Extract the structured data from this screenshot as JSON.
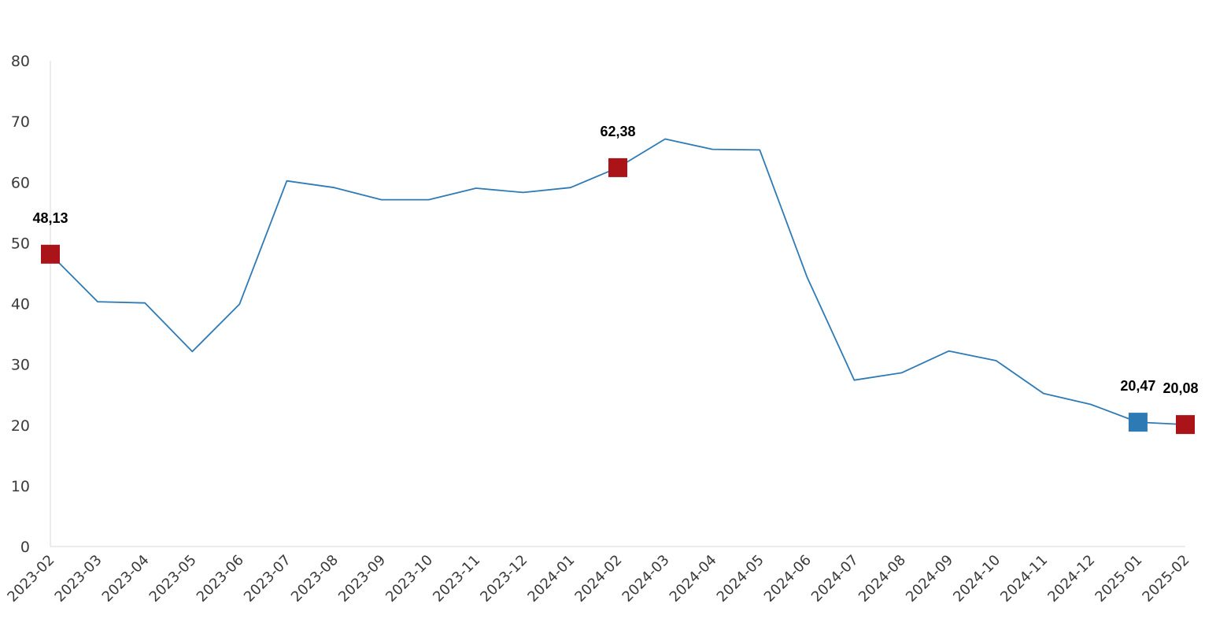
{
  "chart_data": {
    "type": "line",
    "title": "",
    "xlabel": "",
    "ylabel": "",
    "ylim": [
      0,
      80
    ],
    "yticks": [
      0,
      10,
      20,
      30,
      40,
      50,
      60,
      70,
      80
    ],
    "grid": false,
    "legend": "none",
    "categories": [
      "2023-02",
      "2023-03",
      "2023-04",
      "2023-05",
      "2023-06",
      "2023-07",
      "2023-08",
      "2023-09",
      "2023-10",
      "2023-11",
      "2023-12",
      "2024-01",
      "2024-02",
      "2024-03",
      "2024-04",
      "2024-05",
      "2024-06",
      "2024-07",
      "2024-08",
      "2024-09",
      "2024-10",
      "2024-11",
      "2024-12",
      "2025-01",
      "2025-02"
    ],
    "series": [
      {
        "color": "#2e7ab5",
        "values": [
          48.13,
          40.3,
          40.1,
          32.1,
          39.9,
          60.2,
          59.1,
          57.1,
          57.1,
          59.0,
          58.3,
          59.1,
          62.38,
          67.1,
          65.4,
          65.3,
          44.4,
          27.4,
          28.6,
          32.2,
          30.6,
          25.2,
          23.4,
          20.47,
          20.08
        ]
      }
    ],
    "highlights": [
      {
        "index": 0,
        "label": "48,13",
        "color": "#aa1419"
      },
      {
        "index": 12,
        "label": "62,38",
        "color": "#aa1419"
      },
      {
        "index": 23,
        "label": "20,47",
        "color": "#2e7ab5"
      },
      {
        "index": 24,
        "label": "20,08",
        "color": "#aa1419"
      }
    ]
  }
}
